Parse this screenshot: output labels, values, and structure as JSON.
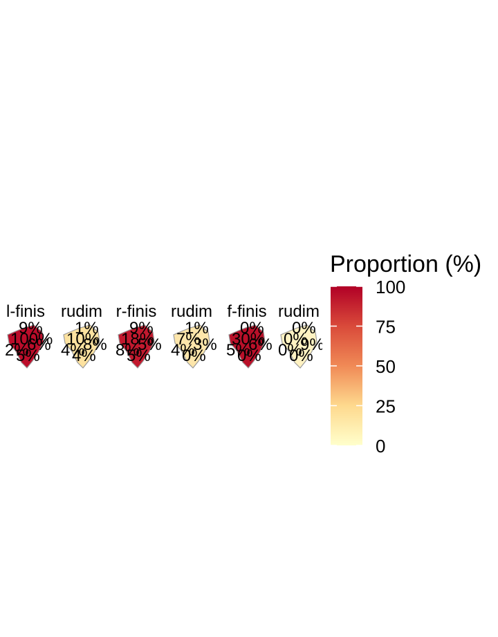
{
  "legend": {
    "title": "Proportion (%)",
    "ticks": [
      100,
      75,
      50,
      25,
      0
    ],
    "range": [
      0,
      100
    ],
    "colors": {
      "low": "#ffffcc",
      "mid_low": "#fed98e",
      "mid": "#f08a56",
      "mid_high": "#d94a3a",
      "high": "#b10026"
    }
  },
  "panels": [
    {
      "title": "l-finis",
      "fill": "#bb0d2a",
      "labels": [
        "9%",
        "100%",
        "6%",
        "2%",
        "5%"
      ]
    },
    {
      "title": "rudim",
      "fill": "#fde2a0",
      "labels": [
        "1%",
        "10%",
        "8%",
        "4%",
        "4%"
      ]
    },
    {
      "title": "r-finis",
      "fill": "#c2192e",
      "labels": [
        "9%",
        "18%",
        "5%",
        "8%",
        "5%"
      ]
    },
    {
      "title": "rudim",
      "fill": "#fde6ab",
      "labels": [
        "1%",
        "7%",
        "3%",
        "4%",
        "0%"
      ]
    },
    {
      "title": "f-finis",
      "fill": "#b91029",
      "labels": [
        "0%",
        "30%",
        "6%",
        "5%",
        "0%"
      ]
    },
    {
      "title": "rudim",
      "fill": "#fff2c2",
      "labels": [
        "0%",
        "0%",
        "9%",
        "0%",
        "0%"
      ]
    }
  ]
}
